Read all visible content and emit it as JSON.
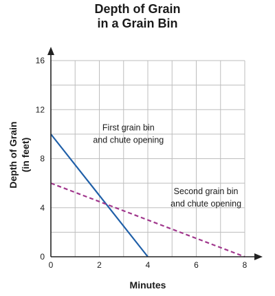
{
  "chart_data": {
    "type": "line",
    "title_lines": [
      "Depth of Grain",
      "in a Grain Bin"
    ],
    "xlabel": "Minutes",
    "ylabel_lines": [
      "Depth of Grain",
      "(in feet)"
    ],
    "xlim": [
      0,
      8
    ],
    "ylim": [
      0,
      16
    ],
    "x_ticks": [
      "0",
      "2",
      "4",
      "6",
      "8"
    ],
    "y_ticks": [
      "0",
      "4",
      "8",
      "12",
      "16"
    ],
    "grid": true,
    "series": [
      {
        "x": [
          0,
          4
        ],
        "y": [
          10,
          0
        ],
        "color": "#1f5fa8",
        "style": "solid"
      },
      {
        "x": [
          0,
          8
        ],
        "y": [
          6,
          0
        ],
        "color": "#a0368c",
        "style": "dashed"
      }
    ],
    "annotations": [
      {
        "lines": [
          "First grain bin",
          "and chute opening"
        ],
        "x": 3.2,
        "y": 10.3
      },
      {
        "lines": [
          "Second grain bin",
          "and chute opening"
        ],
        "x": 6.4,
        "y": 5.1
      }
    ]
  }
}
